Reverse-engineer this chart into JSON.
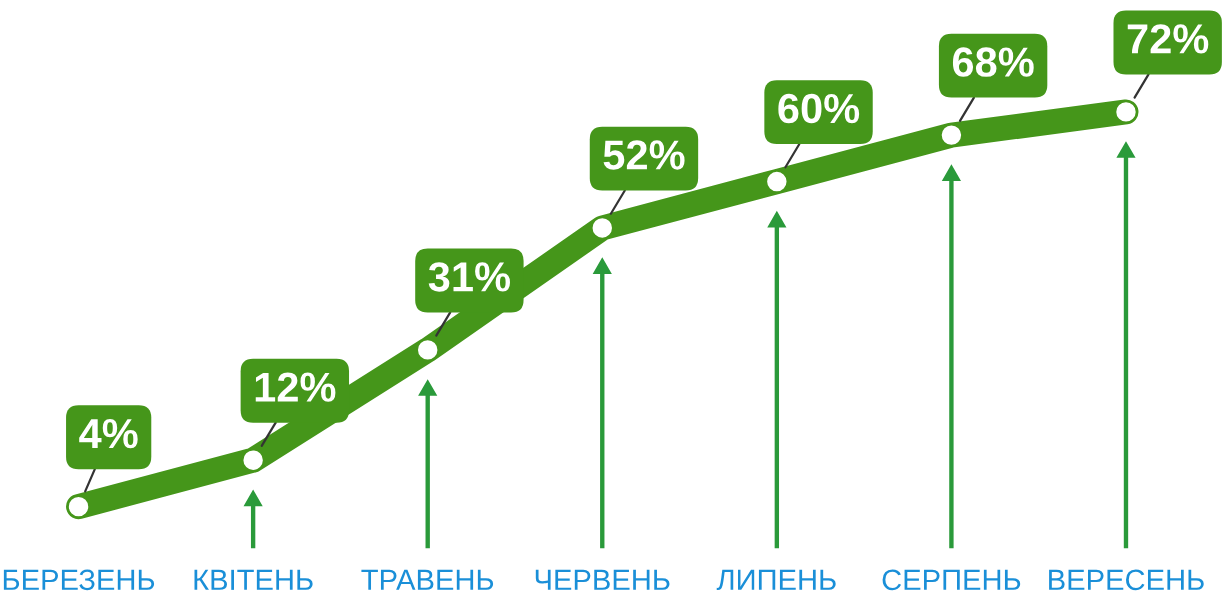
{
  "chart_data": {
    "type": "line",
    "categories": [
      "БЕРЕЗЕНЬ",
      "КВІТЕНЬ",
      "ТРАВЕНЬ",
      "ЧЕРВЕНЬ",
      "ЛИПЕНЬ",
      "СЕРПЕНЬ",
      "ВЕРЕСЕНЬ"
    ],
    "series": [
      {
        "color": "#45961a",
        "values": [
          4,
          12,
          31,
          52,
          60,
          68,
          72
        ],
        "value_labels": [
          "4%",
          "12%",
          "31%",
          "52%",
          "60%",
          "68%",
          "72%"
        ]
      }
    ],
    "marker": "circle",
    "line_style": "solid",
    "grid": false
  }
}
